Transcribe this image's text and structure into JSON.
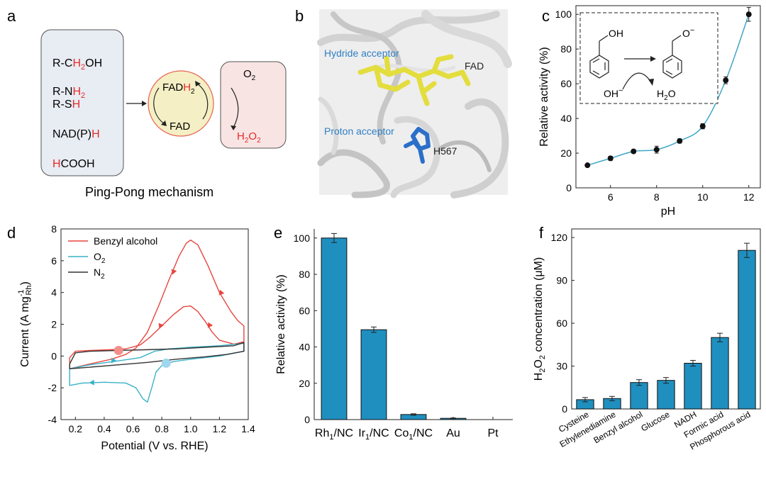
{
  "panels": {
    "a": {
      "letter": "a",
      "donors": [
        {
          "pre": "R-C",
          "red": "H",
          "sub": "2",
          "post": "OH"
        },
        {
          "pre": "R-N",
          "red": "H",
          "sub": "2",
          "post": ""
        },
        {
          "pre": "R-S",
          "red": "H",
          "sub": "",
          "post": ""
        },
        {
          "pre": "NAD(P)",
          "red": "H",
          "sub": "",
          "post": ""
        },
        {
          "pre": "",
          "red": "H",
          "sub": "",
          "post": "COOH"
        }
      ],
      "fadh_top": "FAD",
      "fadh_red": "H",
      "fadh_sub": "2",
      "fad_bottom": "FAD",
      "o2_main": "O",
      "o2_sub": "2",
      "h2o2_main": "H",
      "h2o2_sub1": "2",
      "h2o2_mid": "O",
      "h2o2_sub2": "2",
      "caption": "Ping-Pong mechanism",
      "colors": {
        "donor_box": "#e8ecf3",
        "enzyme": "#f5efc5",
        "enzyme_ring": "#e8614f",
        "o2_box": "#f9e4e4",
        "red": "#e52b2b"
      }
    },
    "b": {
      "letter": "b",
      "hydride": "Hydride acceptor",
      "fad": "FAD",
      "proton": "Proton acceptor",
      "residue": "H567",
      "colors": {
        "label_blue": "#2f7fc4",
        "fad_yellow": "#e3dd3e",
        "his_blue": "#2a6fc9"
      }
    },
    "c": {
      "letter": "c",
      "oh_label": "OH",
      "o_label": "O",
      "o_charge": "−",
      "hydroxide": "OH",
      "hydroxide_charge": "−",
      "water_h": "H",
      "water_sub": "2",
      "water_o": "O"
    },
    "d": {
      "letter": "d"
    },
    "e": {
      "letter": "e"
    },
    "f": {
      "letter": "f"
    }
  },
  "chart_data": [
    {
      "id": "c",
      "type": "scatter",
      "xlabel": "pH",
      "ylabel": "Relative activity (%)",
      "xlim": [
        4.5,
        12.5
      ],
      "ylim": [
        0,
        105
      ],
      "xticks": [
        6,
        8,
        10,
        12
      ],
      "yticks": [
        0,
        20,
        40,
        60,
        80,
        100
      ],
      "x": [
        5,
        6,
        7,
        8,
        9,
        10,
        11,
        12
      ],
      "y": [
        13,
        17,
        21,
        22,
        27,
        35.5,
        62,
        100
      ],
      "err": [
        0.5,
        1.2,
        1,
        2,
        1.2,
        1.5,
        2,
        4
      ],
      "fit_color": "#3fa7c9"
    },
    {
      "id": "d",
      "type": "line",
      "xlabel": "Potential (V vs. RHE)",
      "ylabel": "Current (A mg",
      "ylabel_sup": "-1",
      "ylabel_sub": "Rh",
      "ylabel_close": ")",
      "xlim": [
        0.1,
        1.4
      ],
      "ylim": [
        -4,
        8
      ],
      "xticks": [
        0.2,
        0.4,
        0.6,
        0.8,
        1.0,
        1.2,
        1.4
      ],
      "xtick_labels": [
        "0.2",
        "0.4",
        "0.6",
        "0.8",
        "1.0",
        "1.2",
        "1.4"
      ],
      "yticks": [
        -4,
        -2,
        0,
        2,
        4,
        6,
        8
      ],
      "series": [
        {
          "name": "Benzyl alcohol",
          "legend_main": "Benzyl alcohol",
          "legend_sub": "",
          "color": "#e8453f",
          "points": [
            [
              0.16,
              -0.8
            ],
            [
              0.3,
              -0.5
            ],
            [
              0.45,
              -0.2
            ],
            [
              0.55,
              0.1
            ],
            [
              0.62,
              0.5
            ],
            [
              0.7,
              1.5
            ],
            [
              0.78,
              3.2
            ],
            [
              0.85,
              4.8
            ],
            [
              0.92,
              6.3
            ],
            [
              0.97,
              7.1
            ],
            [
              1.0,
              7.3
            ],
            [
              1.05,
              7.0
            ],
            [
              1.12,
              5.7
            ],
            [
              1.2,
              4.0
            ],
            [
              1.28,
              2.8
            ],
            [
              1.33,
              2.2
            ],
            [
              1.37,
              1.9
            ],
            [
              1.37,
              0.9
            ],
            [
              1.3,
              0.75
            ],
            [
              1.2,
              1.0
            ],
            [
              1.15,
              1.5
            ],
            [
              1.1,
              2.2
            ],
            [
              1.05,
              2.8
            ],
            [
              1.0,
              3.15
            ],
            [
              0.95,
              3.1
            ],
            [
              0.88,
              2.6
            ],
            [
              0.8,
              1.9
            ],
            [
              0.72,
              1.2
            ],
            [
              0.65,
              0.7
            ],
            [
              0.55,
              0.45
            ],
            [
              0.45,
              0.4
            ],
            [
              0.3,
              0.35
            ],
            [
              0.2,
              0.3
            ],
            [
              0.16,
              -0.1
            ],
            [
              0.16,
              -0.8
            ]
          ]
        },
        {
          "name": "O2",
          "legend_main": "O",
          "legend_sub": "2",
          "color": "#3ab1c8",
          "points": [
            [
              0.16,
              -0.8
            ],
            [
              0.3,
              -0.55
            ],
            [
              0.5,
              -0.3
            ],
            [
              0.65,
              -0.1
            ],
            [
              0.75,
              0.3
            ],
            [
              0.85,
              0.45
            ],
            [
              1.0,
              0.55
            ],
            [
              1.2,
              0.65
            ],
            [
              1.37,
              0.8
            ],
            [
              1.37,
              0.3
            ],
            [
              1.2,
              0.0
            ],
            [
              1.0,
              -0.2
            ],
            [
              0.88,
              -0.35
            ],
            [
              0.8,
              -0.6
            ],
            [
              0.76,
              -1.0
            ],
            [
              0.73,
              -2.0
            ],
            [
              0.7,
              -2.9
            ],
            [
              0.67,
              -2.7
            ],
            [
              0.62,
              -2.0
            ],
            [
              0.55,
              -1.7
            ],
            [
              0.4,
              -1.65
            ],
            [
              0.25,
              -1.7
            ],
            [
              0.16,
              -1.85
            ],
            [
              0.16,
              -0.8
            ]
          ]
        },
        {
          "name": "N2",
          "legend_main": "N",
          "legend_sub": "2",
          "color": "#333333",
          "points": [
            [
              0.16,
              -0.5
            ],
            [
              0.2,
              0.2
            ],
            [
              0.3,
              0.3
            ],
            [
              0.5,
              0.35
            ],
            [
              0.7,
              0.4
            ],
            [
              0.9,
              0.45
            ],
            [
              1.1,
              0.55
            ],
            [
              1.3,
              0.65
            ],
            [
              1.37,
              0.85
            ],
            [
              1.37,
              0.3
            ],
            [
              1.25,
              0.1
            ],
            [
              1.1,
              -0.05
            ],
            [
              0.9,
              -0.2
            ],
            [
              0.7,
              -0.4
            ],
            [
              0.5,
              -0.55
            ],
            [
              0.3,
              -0.7
            ],
            [
              0.16,
              -0.8
            ],
            [
              0.16,
              -0.5
            ]
          ]
        }
      ],
      "arrows": [
        {
          "series": 0,
          "at": [
            0.87,
            5.3
          ],
          "dir": [
            0.55,
            1
          ]
        },
        {
          "series": 0,
          "at": [
            1.2,
            4.0
          ],
          "dir": [
            0.6,
            -1
          ]
        },
        {
          "series": 0,
          "at": [
            0.78,
            1.9
          ],
          "dir": [
            0.8,
            1
          ]
        },
        {
          "series": 0,
          "at": [
            1.12,
            1.95
          ],
          "dir": [
            1,
            -0.6
          ]
        },
        {
          "series": 1,
          "at": [
            0.45,
            -0.28
          ],
          "dir": [
            1,
            0.08
          ]
        },
        {
          "series": 1,
          "at": [
            0.33,
            -1.67
          ],
          "dir": [
            -1,
            -0.05
          ]
        }
      ],
      "markers": [
        {
          "x": 0.5,
          "y": 0.35,
          "color": "#f28f8a"
        },
        {
          "x": 0.83,
          "y": -0.45,
          "color": "#9fd7ee"
        }
      ]
    },
    {
      "id": "e",
      "type": "bar",
      "ylabel": "Relative activity (%)",
      "ylim": [
        0,
        105
      ],
      "yticks": [
        0,
        20,
        40,
        60,
        80,
        100
      ],
      "categories": [
        "Rh1/NC",
        "Ir1/NC",
        "Co1/NC",
        "Au",
        "Pt"
      ],
      "category_parts": [
        {
          "main": "Rh",
          "sub": "1",
          "rest": "/NC"
        },
        {
          "main": "Ir",
          "sub": "1",
          "rest": "/NC"
        },
        {
          "main": "Co",
          "sub": "1",
          "rest": "/NC"
        },
        {
          "main": "Au",
          "sub": "",
          "rest": ""
        },
        {
          "main": "Pt",
          "sub": "",
          "rest": ""
        }
      ],
      "values": [
        100,
        49.5,
        2.8,
        0.7,
        0
      ],
      "err": [
        2.5,
        1.5,
        0.4,
        0.2,
        0
      ],
      "color": "#1f8fbf"
    },
    {
      "id": "f",
      "type": "bar",
      "ylabel_pre": "H",
      "ylabel_sub1": "2",
      "ylabel_mid": "O",
      "ylabel_sub2": "2",
      "ylabel_post": " concentration (μM)",
      "ylim": [
        0,
        126
      ],
      "yticks": [
        0,
        30,
        60,
        90,
        120
      ],
      "categories": [
        "Cysteine",
        "Ethylenediamine",
        "Benzyl alcohol",
        "Glucose",
        "NADH",
        "Formic acid",
        "Phosphorous acid"
      ],
      "values": [
        6.5,
        7.3,
        18.5,
        20,
        32,
        50,
        111
      ],
      "err": [
        1.5,
        1.5,
        2,
        2,
        2,
        3,
        5
      ],
      "color": "#1f8fbf"
    }
  ]
}
